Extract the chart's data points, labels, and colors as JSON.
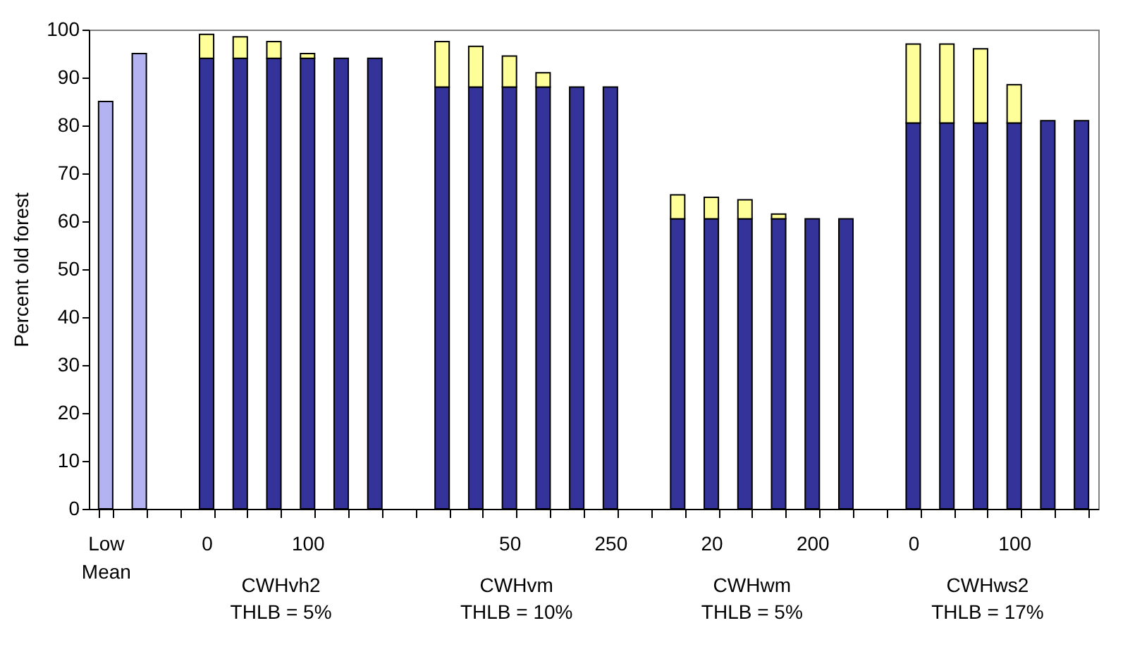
{
  "chart_data": {
    "type": "bar",
    "stacked": true,
    "ylabel": "Percent old forest",
    "categories": [
      "Low Mean",
      null,
      null,
      "0",
      null,
      null,
      "100",
      null,
      null,
      null,
      null,
      null,
      "50",
      null,
      null,
      "250",
      null,
      null,
      "20",
      null,
      null,
      "200",
      null,
      null,
      "0",
      null,
      null,
      "100",
      null,
      null
    ],
    "series": [
      {
        "colors": [
          "#b3b3f2",
          "#b3b3f2",
          null,
          "#333399",
          "#333399",
          "#333399",
          "#333399",
          "#333399",
          "#333399",
          null,
          "#333399",
          "#333399",
          "#333399",
          "#333399",
          "#333399",
          "#333399",
          null,
          "#333399",
          "#333399",
          "#333399",
          "#333399",
          "#333399",
          "#333399",
          null,
          "#333399",
          "#333399",
          "#333399",
          "#333399",
          "#333399",
          "#333399"
        ],
        "values": [
          85,
          95,
          null,
          94,
          94,
          94,
          94,
          94,
          94,
          null,
          88,
          88,
          88,
          88,
          88,
          88,
          null,
          60.5,
          60.5,
          60.5,
          60.5,
          60.5,
          60.5,
          null,
          80.5,
          80.5,
          80.5,
          80.5,
          81,
          81
        ]
      },
      {
        "color": "#ffff99",
        "values": [
          null,
          null,
          null,
          5,
          4.5,
          3.5,
          1,
          null,
          null,
          null,
          9.5,
          8.5,
          6.5,
          3,
          null,
          null,
          null,
          5,
          4.5,
          4,
          1,
          null,
          null,
          null,
          16.5,
          16.5,
          15.5,
          8,
          null,
          null
        ]
      }
    ],
    "ylim": [
      0,
      100
    ],
    "yticks": [
      0,
      10,
      20,
      30,
      40,
      50,
      60,
      70,
      80,
      90,
      100
    ],
    "annotations": [
      "CWHvh2 THLB = 5%",
      "CWHvm THLB = 10%",
      "CWHwm THLB = 5%",
      "CWHws2 THLB = 17%"
    ]
  }
}
